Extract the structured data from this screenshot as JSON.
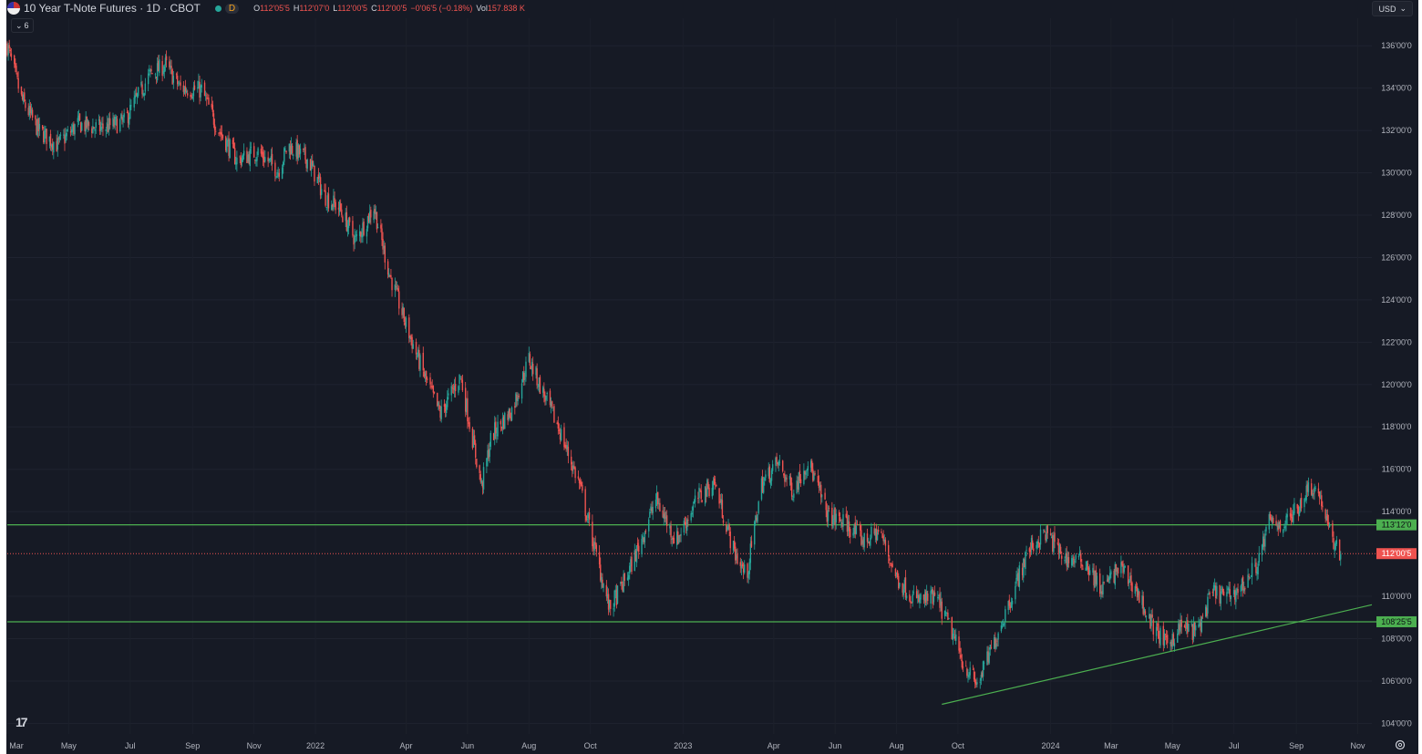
{
  "header": {
    "title": "10 Year T-Note Futures · 1D · CBOT",
    "interval_badge": "D",
    "open_label": "O",
    "open": "112'05'5",
    "high_label": "H",
    "high": "112'07'0",
    "low_label": "L",
    "low": "112'00'5",
    "close_label": "C",
    "close": "112'00'5",
    "change": "−0'06'5 (−0.18%)",
    "vol_label": "Vol",
    "vol": "157.838 K",
    "indicators_count": "6",
    "currency": "USD"
  },
  "colors": {
    "background": "#161a25",
    "up": "#26a69a",
    "down": "#ef5350",
    "support_line": "#4caf50",
    "last_price": "#ef5350"
  },
  "chart_data": {
    "type": "candlestick",
    "title": "10 Year T-Note Futures · 1D · CBOT",
    "ylim": [
      103.5,
      137.3
    ],
    "y_ticks": [
      {
        "value": 136,
        "label": "136'00'0"
      },
      {
        "value": 134,
        "label": "134'00'0"
      },
      {
        "value": 132,
        "label": "132'00'0"
      },
      {
        "value": 130,
        "label": "130'00'0"
      },
      {
        "value": 128,
        "label": "128'00'0"
      },
      {
        "value": 126,
        "label": "126'00'0"
      },
      {
        "value": 124,
        "label": "124'00'0"
      },
      {
        "value": 122,
        "label": "122'00'0"
      },
      {
        "value": 120,
        "label": "120'00'0"
      },
      {
        "value": 118,
        "label": "118'00'0"
      },
      {
        "value": 116,
        "label": "116'00'0"
      },
      {
        "value": 114,
        "label": "114'00'0"
      },
      {
        "value": 110,
        "label": "110'00'0"
      },
      {
        "value": 108,
        "label": "108'00'0"
      },
      {
        "value": 106,
        "label": "106'00'0"
      },
      {
        "value": 104,
        "label": "104'00'0"
      }
    ],
    "x_range": [
      "2021-03-01",
      "2024-11-15"
    ],
    "x_ticks": [
      {
        "date": "2021-03-01",
        "label": "Mar"
      },
      {
        "date": "2021-05-01",
        "label": "May"
      },
      {
        "date": "2021-07-01",
        "label": "Jul"
      },
      {
        "date": "2021-09-01",
        "label": "Sep"
      },
      {
        "date": "2021-11-01",
        "label": "Nov"
      },
      {
        "date": "2022-01-01",
        "label": "2022"
      },
      {
        "date": "2022-04-01",
        "label": "Apr"
      },
      {
        "date": "2022-06-01",
        "label": "Jun"
      },
      {
        "date": "2022-08-01",
        "label": "Aug"
      },
      {
        "date": "2022-10-01",
        "label": "Oct"
      },
      {
        "date": "2023-01-01",
        "label": "2023"
      },
      {
        "date": "2023-04-01",
        "label": "Apr"
      },
      {
        "date": "2023-06-01",
        "label": "Jun"
      },
      {
        "date": "2023-08-01",
        "label": "Aug"
      },
      {
        "date": "2023-10-01",
        "label": "Oct"
      },
      {
        "date": "2024-01-01",
        "label": "2024"
      },
      {
        "date": "2024-03-01",
        "label": "Mar"
      },
      {
        "date": "2024-05-01",
        "label": "May"
      },
      {
        "date": "2024-07-01",
        "label": "Jul"
      },
      {
        "date": "2024-09-01",
        "label": "Sep"
      },
      {
        "date": "2024-11-01",
        "label": "Nov"
      }
    ],
    "price_path": [
      {
        "date": "2021-03-01",
        "close": 136.0
      },
      {
        "date": "2021-03-15",
        "close": 133.5
      },
      {
        "date": "2021-04-01",
        "close": 132.0
      },
      {
        "date": "2021-04-20",
        "close": 131.3
      },
      {
        "date": "2021-05-10",
        "close": 132.3
      },
      {
        "date": "2021-06-01",
        "close": 132.1
      },
      {
        "date": "2021-06-25",
        "close": 132.4
      },
      {
        "date": "2021-07-20",
        "close": 134.6
      },
      {
        "date": "2021-08-05",
        "close": 135.1
      },
      {
        "date": "2021-08-20",
        "close": 134.0
      },
      {
        "date": "2021-09-10",
        "close": 133.9
      },
      {
        "date": "2021-09-25",
        "close": 132.2
      },
      {
        "date": "2021-10-15",
        "close": 130.6
      },
      {
        "date": "2021-11-05",
        "close": 131.0
      },
      {
        "date": "2021-11-25",
        "close": 130.1
      },
      {
        "date": "2021-12-05",
        "close": 131.3
      },
      {
        "date": "2021-12-25",
        "close": 130.6
      },
      {
        "date": "2022-01-10",
        "close": 128.9
      },
      {
        "date": "2022-01-25",
        "close": 128.3
      },
      {
        "date": "2022-02-10",
        "close": 126.8
      },
      {
        "date": "2022-02-28",
        "close": 128.4
      },
      {
        "date": "2022-03-15",
        "close": 125.3
      },
      {
        "date": "2022-04-01",
        "close": 122.8
      },
      {
        "date": "2022-04-20",
        "close": 120.3
      },
      {
        "date": "2022-05-05",
        "close": 118.6
      },
      {
        "date": "2022-05-25",
        "close": 120.4
      },
      {
        "date": "2022-06-15",
        "close": 115.2
      },
      {
        "date": "2022-06-25",
        "close": 117.6
      },
      {
        "date": "2022-07-15",
        "close": 118.8
      },
      {
        "date": "2022-08-01",
        "close": 121.2
      },
      {
        "date": "2022-08-15",
        "close": 119.6
      },
      {
        "date": "2022-08-31",
        "close": 117.9
      },
      {
        "date": "2022-09-20",
        "close": 115.3
      },
      {
        "date": "2022-10-05",
        "close": 112.3
      },
      {
        "date": "2022-10-20",
        "close": 109.4
      },
      {
        "date": "2022-11-05",
        "close": 110.8
      },
      {
        "date": "2022-11-20",
        "close": 112.6
      },
      {
        "date": "2022-12-05",
        "close": 114.6
      },
      {
        "date": "2022-12-25",
        "close": 112.6
      },
      {
        "date": "2023-01-15",
        "close": 114.6
      },
      {
        "date": "2023-02-01",
        "close": 115.4
      },
      {
        "date": "2023-02-20",
        "close": 112.2
      },
      {
        "date": "2023-03-05",
        "close": 110.9
      },
      {
        "date": "2023-03-20",
        "close": 115.3
      },
      {
        "date": "2023-04-05",
        "close": 116.3
      },
      {
        "date": "2023-04-20",
        "close": 115.0
      },
      {
        "date": "2023-05-05",
        "close": 116.4
      },
      {
        "date": "2023-05-25",
        "close": 113.8
      },
      {
        "date": "2023-06-10",
        "close": 113.5
      },
      {
        "date": "2023-06-30",
        "close": 112.6
      },
      {
        "date": "2023-07-15",
        "close": 113.1
      },
      {
        "date": "2023-08-01",
        "close": 110.9
      },
      {
        "date": "2023-08-20",
        "close": 109.8
      },
      {
        "date": "2023-09-10",
        "close": 109.9
      },
      {
        "date": "2023-09-25",
        "close": 108.3
      },
      {
        "date": "2023-10-05",
        "close": 107.0
      },
      {
        "date": "2023-10-20",
        "close": 105.8
      },
      {
        "date": "2023-11-05",
        "close": 107.7
      },
      {
        "date": "2023-11-20",
        "close": 109.6
      },
      {
        "date": "2023-12-10",
        "close": 112.2
      },
      {
        "date": "2023-12-27",
        "close": 113.0
      },
      {
        "date": "2024-01-15",
        "close": 111.8
      },
      {
        "date": "2024-02-05",
        "close": 111.6
      },
      {
        "date": "2024-02-20",
        "close": 110.3
      },
      {
        "date": "2024-03-10",
        "close": 111.4
      },
      {
        "date": "2024-03-25",
        "close": 110.4
      },
      {
        "date": "2024-04-10",
        "close": 108.7
      },
      {
        "date": "2024-04-25",
        "close": 107.7
      },
      {
        "date": "2024-05-10",
        "close": 108.6
      },
      {
        "date": "2024-05-25",
        "close": 108.3
      },
      {
        "date": "2024-06-10",
        "close": 110.2
      },
      {
        "date": "2024-06-25",
        "close": 110.0
      },
      {
        "date": "2024-07-10",
        "close": 110.5
      },
      {
        "date": "2024-07-25",
        "close": 111.6
      },
      {
        "date": "2024-08-05",
        "close": 113.5
      },
      {
        "date": "2024-08-20",
        "close": 113.4
      },
      {
        "date": "2024-09-01",
        "close": 114.1
      },
      {
        "date": "2024-09-15",
        "close": 115.3
      },
      {
        "date": "2024-09-25",
        "close": 114.7
      },
      {
        "date": "2024-10-05",
        "close": 112.8
      },
      {
        "date": "2024-10-15",
        "close": 112.0
      }
    ],
    "horizontal_lines": [
      {
        "value": 113.375,
        "label": "113'12'0",
        "color": "#4caf50"
      },
      {
        "value": 108.797,
        "label": "108'25'5",
        "color": "#4caf50"
      }
    ],
    "last_price": {
      "value": 112.016,
      "label": "112'00'5"
    },
    "trendline": {
      "start": {
        "date": "2023-09-15",
        "value": 104.9
      },
      "end": {
        "date": "2024-11-15",
        "value": 109.6
      }
    }
  }
}
